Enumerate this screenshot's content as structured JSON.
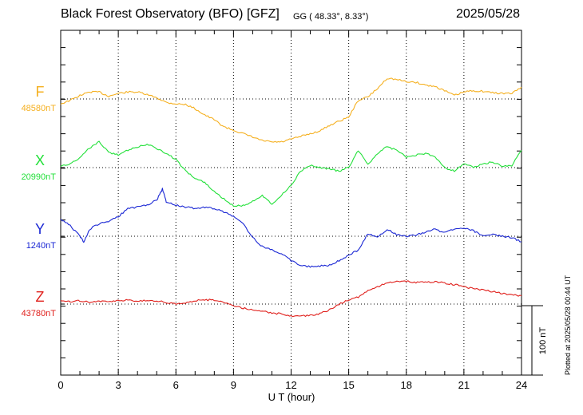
{
  "header": {
    "title": "Black Forest Observatory (BFO)  [GFZ]",
    "coords": "GG ( 48.33°,   8.33°)",
    "date": "2025/05/28",
    "plotted_note": "Plotted at 2025/05/28 00:44 UT"
  },
  "chart_data": {
    "type": "line",
    "title": "Black Forest Observatory (BFO)  [GFZ]",
    "xlabel": "U T (hour)",
    "ylabel": "",
    "xlim": [
      0,
      24
    ],
    "xticks": [
      0,
      3,
      6,
      9,
      12,
      15,
      18,
      21,
      24
    ],
    "grid": true,
    "scale_bar": "100 nT",
    "series": [
      {
        "name": "F",
        "baseline_label": "48580nT",
        "baseline": 48580,
        "color": "#f5b020",
        "x": [
          0,
          0.5,
          1,
          1.5,
          2,
          2.5,
          3,
          3.5,
          4,
          4.5,
          5,
          5.5,
          6,
          6.5,
          7,
          7.5,
          8,
          8.5,
          9,
          9.5,
          10,
          10.5,
          11,
          11.5,
          12,
          12.5,
          13,
          13.5,
          14,
          14.5,
          15,
          15.5,
          16,
          16.5,
          17,
          17.5,
          18,
          18.5,
          19,
          19.5,
          20,
          20.5,
          21,
          21.5,
          22,
          22.5,
          23,
          23.5,
          24
        ],
        "y": [
          48573,
          48578,
          48585,
          48590,
          48590,
          48584,
          48588,
          48590,
          48590,
          48586,
          48582,
          48575,
          48573,
          48572,
          48566,
          48557,
          48550,
          48540,
          48535,
          48530,
          48525,
          48520,
          48518,
          48518,
          48522,
          48526,
          48530,
          48534,
          48542,
          48548,
          48554,
          48578,
          48583,
          48595,
          48610,
          48608,
          48605,
          48604,
          48600,
          48598,
          48592,
          48585,
          48590,
          48592,
          48591,
          48589,
          48588,
          48588,
          48597
        ]
      },
      {
        "name": "X",
        "baseline_label": "20990nT",
        "baseline": 20990,
        "color": "#22e039",
        "x": [
          0,
          0.5,
          1,
          1.5,
          2,
          2.5,
          3,
          3.5,
          4,
          4.5,
          5,
          5.5,
          6,
          6.5,
          7,
          7.5,
          8,
          8.5,
          9,
          9.5,
          10,
          10.5,
          11,
          11.5,
          12,
          12.5,
          13,
          13.5,
          14,
          14.5,
          15,
          15.5,
          16,
          16.5,
          17,
          17.5,
          18,
          18.5,
          19,
          19.5,
          20,
          20.5,
          21,
          21.5,
          22,
          22.5,
          23,
          23.5,
          24
        ],
        "y": [
          20992,
          20995,
          21005,
          21018,
          21028,
          21012,
          21008,
          21015,
          21020,
          21024,
          21018,
          21010,
          21002,
          20985,
          20975,
          20968,
          20955,
          20945,
          20935,
          20935,
          20942,
          20950,
          20938,
          20950,
          20965,
          20985,
          20993,
          20990,
          20988,
          20985,
          20990,
          21015,
          20995,
          21010,
          21020,
          21015,
          21005,
          21008,
          21010,
          21006,
          20990,
          20985,
          20996,
          20990,
          20995,
          20998,
          20992,
          20993,
          21015
        ]
      },
      {
        "name": "Y",
        "baseline_label": "1240nT",
        "baseline": 1240,
        "color": "#1a27d4",
        "x": [
          0,
          0.5,
          1,
          1.2,
          1.5,
          2,
          2.5,
          3,
          3.5,
          4,
          4.5,
          5,
          5.3,
          5.5,
          6,
          6.5,
          7,
          7.5,
          8,
          8.5,
          9,
          9.5,
          10,
          10.5,
          11,
          11.5,
          12,
          12.5,
          13,
          13.5,
          14,
          14.5,
          15,
          15.5,
          16,
          16.5,
          17,
          17.5,
          18,
          18.5,
          19,
          19.5,
          20,
          20.5,
          21,
          21.5,
          22,
          22.5,
          23,
          23.5,
          24
        ],
        "y": [
          1265,
          1255,
          1240,
          1232,
          1250,
          1258,
          1262,
          1268,
          1280,
          1282,
          1285,
          1292,
          1308,
          1290,
          1285,
          1282,
          1280,
          1282,
          1280,
          1275,
          1268,
          1258,
          1238,
          1225,
          1220,
          1215,
          1205,
          1198,
          1196,
          1197,
          1198,
          1205,
          1213,
          1220,
          1244,
          1238,
          1250,
          1242,
          1240,
          1242,
          1246,
          1250,
          1245,
          1250,
          1252,
          1248,
          1240,
          1242,
          1240,
          1238,
          1232
        ]
      },
      {
        "name": "Z",
        "baseline_label": "43780nT",
        "baseline": 43780,
        "color": "#e0201c",
        "x": [
          0,
          0.5,
          1,
          1.5,
          2,
          2.5,
          3,
          3.5,
          4,
          4.5,
          5,
          5.5,
          6,
          6.5,
          7,
          7.5,
          8,
          8.5,
          9,
          9.5,
          10,
          10.5,
          11,
          11.5,
          12,
          12.5,
          13,
          13.5,
          14,
          14.5,
          15,
          15.5,
          16,
          16.5,
          17,
          17.5,
          18,
          18.5,
          19,
          19.5,
          20,
          20.5,
          21,
          21.5,
          22,
          22.5,
          23,
          23.5,
          24
        ],
        "y": [
          43785,
          43784,
          43785,
          43783,
          43784,
          43783,
          43785,
          43786,
          43784,
          43785,
          43785,
          43782,
          43780,
          43782,
          43785,
          43786,
          43786,
          43783,
          43778,
          43774,
          43772,
          43770,
          43767,
          43766,
          43763,
          43763,
          43764,
          43766,
          43772,
          43780,
          43786,
          43790,
          43800,
          43805,
          43810,
          43812,
          43813,
          43811,
          43812,
          43812,
          43810,
          43808,
          43805,
          43802,
          43800,
          43798,
          43795,
          43793,
          43792
        ]
      }
    ]
  }
}
